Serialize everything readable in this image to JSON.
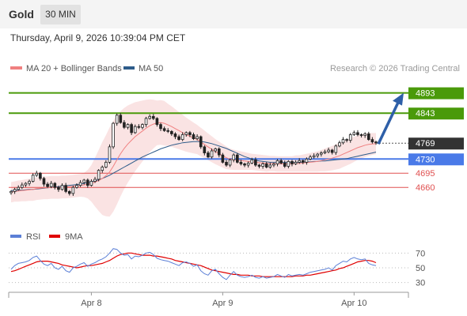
{
  "header": {
    "instrument": "Gold",
    "timeframe": "30 MIN",
    "datetime": "Thursday, April 9, 2026 10:39:04 PM CET"
  },
  "legend": {
    "ma20": "MA 20 + Bollinger Bands",
    "ma50": "MA 50",
    "ma20_color": "#f08080",
    "ma50_color": "#2e5c8a"
  },
  "credit": "Research © 2026 Trading Central",
  "rsi_legend": {
    "rsi": "RSI",
    "ma9": "9MA",
    "rsi_color": "#5b7fd6",
    "ma9_color": "#e00000"
  },
  "chart_data": [
    {
      "type": "candlestick",
      "ylim": [
        4565,
        4935
      ],
      "current_price": 4769,
      "levels": [
        {
          "label": "4893",
          "value": 4893,
          "kind": "resistance",
          "color": "#4a9a0a"
        },
        {
          "label": "4843",
          "value": 4843,
          "kind": "resistance",
          "color": "#4a9a0a"
        },
        {
          "label": "4730",
          "value": 4730,
          "kind": "pivot",
          "color": "#4a7ae8"
        },
        {
          "label": "4695",
          "value": 4695,
          "kind": "support",
          "color": "#e05050"
        },
        {
          "label": "4660",
          "value": 4660,
          "kind": "support",
          "color": "#e05050"
        }
      ],
      "forecast_arrow": {
        "from": 4767,
        "to": 4893
      },
      "x_ticks": [
        {
          "label": "Apr 8",
          "index": 22
        },
        {
          "label": "Apr 9",
          "index": 58
        },
        {
          "label": "Apr 10",
          "index": 94
        }
      ],
      "close": [
        4650,
        4655,
        4660,
        4666,
        4670,
        4675,
        4690,
        4695,
        4682,
        4668,
        4662,
        4670,
        4660,
        4655,
        4665,
        4650,
        4645,
        4660,
        4665,
        4672,
        4678,
        4665,
        4675,
        4680,
        4702,
        4710,
        4722,
        4760,
        4818,
        4838,
        4820,
        4808,
        4815,
        4795,
        4810,
        4808,
        4815,
        4830,
        4835,
        4830,
        4815,
        4805,
        4800,
        4798,
        4792,
        4785,
        4778,
        4790,
        4795,
        4790,
        4780,
        4785,
        4760,
        4745,
        4735,
        4750,
        4755,
        4740,
        4722,
        4715,
        4728,
        4740,
        4722,
        4718,
        4715,
        4720,
        4728,
        4715,
        4712,
        4718,
        4710,
        4715,
        4718,
        4726,
        4720,
        4712,
        4724,
        4718,
        4722,
        4726,
        4722,
        4730,
        4735,
        4738,
        4742,
        4745,
        4748,
        4752,
        4746,
        4762,
        4770,
        4778,
        4776,
        4790,
        4795,
        4790,
        4788,
        4792,
        4778,
        4772,
        4770
      ],
      "ma20": [
        4648,
        4650,
        4651,
        4652,
        4653,
        4654,
        4655,
        4657,
        4658,
        4659,
        4659,
        4660,
        4660,
        4660,
        4661,
        4661,
        4662,
        4663,
        4664,
        4665,
        4666,
        4668,
        4670,
        4673,
        4677,
        4682,
        4689,
        4698,
        4712,
        4728,
        4743,
        4756,
        4767,
        4776,
        4785,
        4792,
        4799,
        4806,
        4812,
        4816,
        4819,
        4820,
        4818,
        4814,
        4810,
        4805,
        4800,
        4795,
        4790,
        4786,
        4782,
        4778,
        4772,
        4766,
        4760,
        4754,
        4748,
        4743,
        4738,
        4733,
        4730,
        4728,
        4727,
        4726,
        4725,
        4724,
        4723,
        4722,
        4721,
        4720,
        4719,
        4719,
        4719,
        4718,
        4718,
        4718,
        4718,
        4718,
        4719,
        4719,
        4720,
        4721,
        4722,
        4723,
        4724,
        4726,
        4728,
        4730,
        4732,
        4735,
        4738,
        4742,
        4746,
        4750,
        4754,
        4758,
        4761,
        4764,
        4766,
        4767,
        4768
      ],
      "ma50": [
        4652,
        4652,
        4653,
        4653,
        4654,
        4655,
        4655,
        4656,
        4657,
        4658,
        4659,
        4660,
        4661,
        4662,
        4663,
        4664,
        4665,
        4666,
        4667,
        4668,
        4670,
        4672,
        4674,
        4676,
        4679,
        4682,
        4686,
        4690,
        4695,
        4700,
        4705,
        4710,
        4715,
        4720,
        4725,
        4730,
        4735,
        4739,
        4743,
        4747,
        4751,
        4755,
        4758,
        4761,
        4764,
        4766,
        4768,
        4770,
        4771,
        4772,
        4773,
        4773,
        4773,
        4772,
        4770,
        4768,
        4765,
        4762,
        4759,
        4756,
        4752,
        4748,
        4744,
        4740,
        4736,
        4733,
        4730,
        4727,
        4725,
        4724,
        4723,
        4722,
        4722,
        4722,
        4722,
        4722,
        4722,
        4722,
        4722,
        4722,
        4722,
        4723,
        4723,
        4724,
        4724,
        4725,
        4725,
        4726,
        4727,
        4728,
        4729,
        4730,
        4731,
        4733,
        4735,
        4737,
        4739,
        4741,
        4743,
        4745,
        4747
      ],
      "bb_width": [
        25,
        25,
        26,
        26,
        27,
        27,
        28,
        28,
        28,
        28,
        28,
        28,
        28,
        28,
        28,
        28,
        28,
        28,
        28,
        28,
        30,
        35,
        45,
        60,
        75,
        90,
        100,
        110,
        112,
        110,
        105,
        100,
        95,
        90,
        85,
        80,
        75,
        70,
        65,
        60,
        55,
        55,
        55,
        52,
        50,
        48,
        46,
        44,
        42,
        40,
        38,
        36,
        35,
        34,
        33,
        32,
        31,
        30,
        29,
        28,
        26,
        25,
        24,
        23,
        22,
        21,
        20,
        20,
        20,
        20,
        20,
        19,
        19,
        19,
        19,
        19,
        19,
        19,
        20,
        20,
        21,
        22,
        23,
        24,
        25,
        26,
        28,
        29,
        30,
        31,
        32,
        32,
        32,
        32,
        31,
        30,
        30,
        29,
        28,
        27,
        26
      ]
    },
    {
      "type": "line",
      "title": "RSI",
      "ylim": [
        20,
        80
      ],
      "y_ticks": [
        70,
        50,
        30
      ],
      "series": [
        {
          "name": "RSI",
          "values": [
            48,
            53,
            56,
            57,
            58,
            60,
            64,
            66,
            60,
            55,
            53,
            56,
            50,
            48,
            52,
            46,
            44,
            50,
            52,
            55,
            57,
            52,
            55,
            57,
            60,
            62,
            65,
            70,
            76,
            75,
            70,
            67,
            68,
            62,
            66,
            65,
            67,
            70,
            71,
            68,
            63,
            61,
            60,
            59,
            57,
            55,
            53,
            57,
            58,
            56,
            52,
            54,
            46,
            42,
            40,
            46,
            48,
            42,
            37,
            34,
            40,
            45,
            40,
            38,
            37,
            38,
            40,
            37,
            36,
            38,
            36,
            37,
            38,
            41,
            39,
            37,
            41,
            39,
            40,
            41,
            40,
            42,
            44,
            45,
            46,
            47,
            48,
            50,
            47,
            53,
            56,
            59,
            58,
            62,
            64,
            62,
            61,
            62,
            56,
            54,
            53
          ]
        },
        {
          "name": "9MA",
          "values": [
            45,
            46,
            48,
            50,
            52,
            54,
            56,
            58,
            59,
            59,
            59,
            58,
            57,
            56,
            54,
            53,
            52,
            51,
            50,
            51,
            52,
            53,
            53,
            54,
            55,
            56,
            58,
            60,
            63,
            66,
            68,
            69,
            70,
            70,
            69,
            68,
            67,
            67,
            67,
            66,
            66,
            65,
            64,
            63,
            62,
            60,
            59,
            58,
            57,
            56,
            55,
            54,
            53,
            51,
            49,
            47,
            46,
            45,
            44,
            43,
            42,
            41,
            41,
            40,
            40,
            40,
            39,
            39,
            39,
            38,
            38,
            38,
            38,
            38,
            38,
            38,
            38,
            38,
            39,
            39,
            39,
            40,
            40,
            41,
            42,
            43,
            44,
            45,
            46,
            47,
            49,
            50,
            52,
            54,
            56,
            58,
            59,
            60,
            60,
            59,
            57
          ]
        }
      ]
    }
  ]
}
